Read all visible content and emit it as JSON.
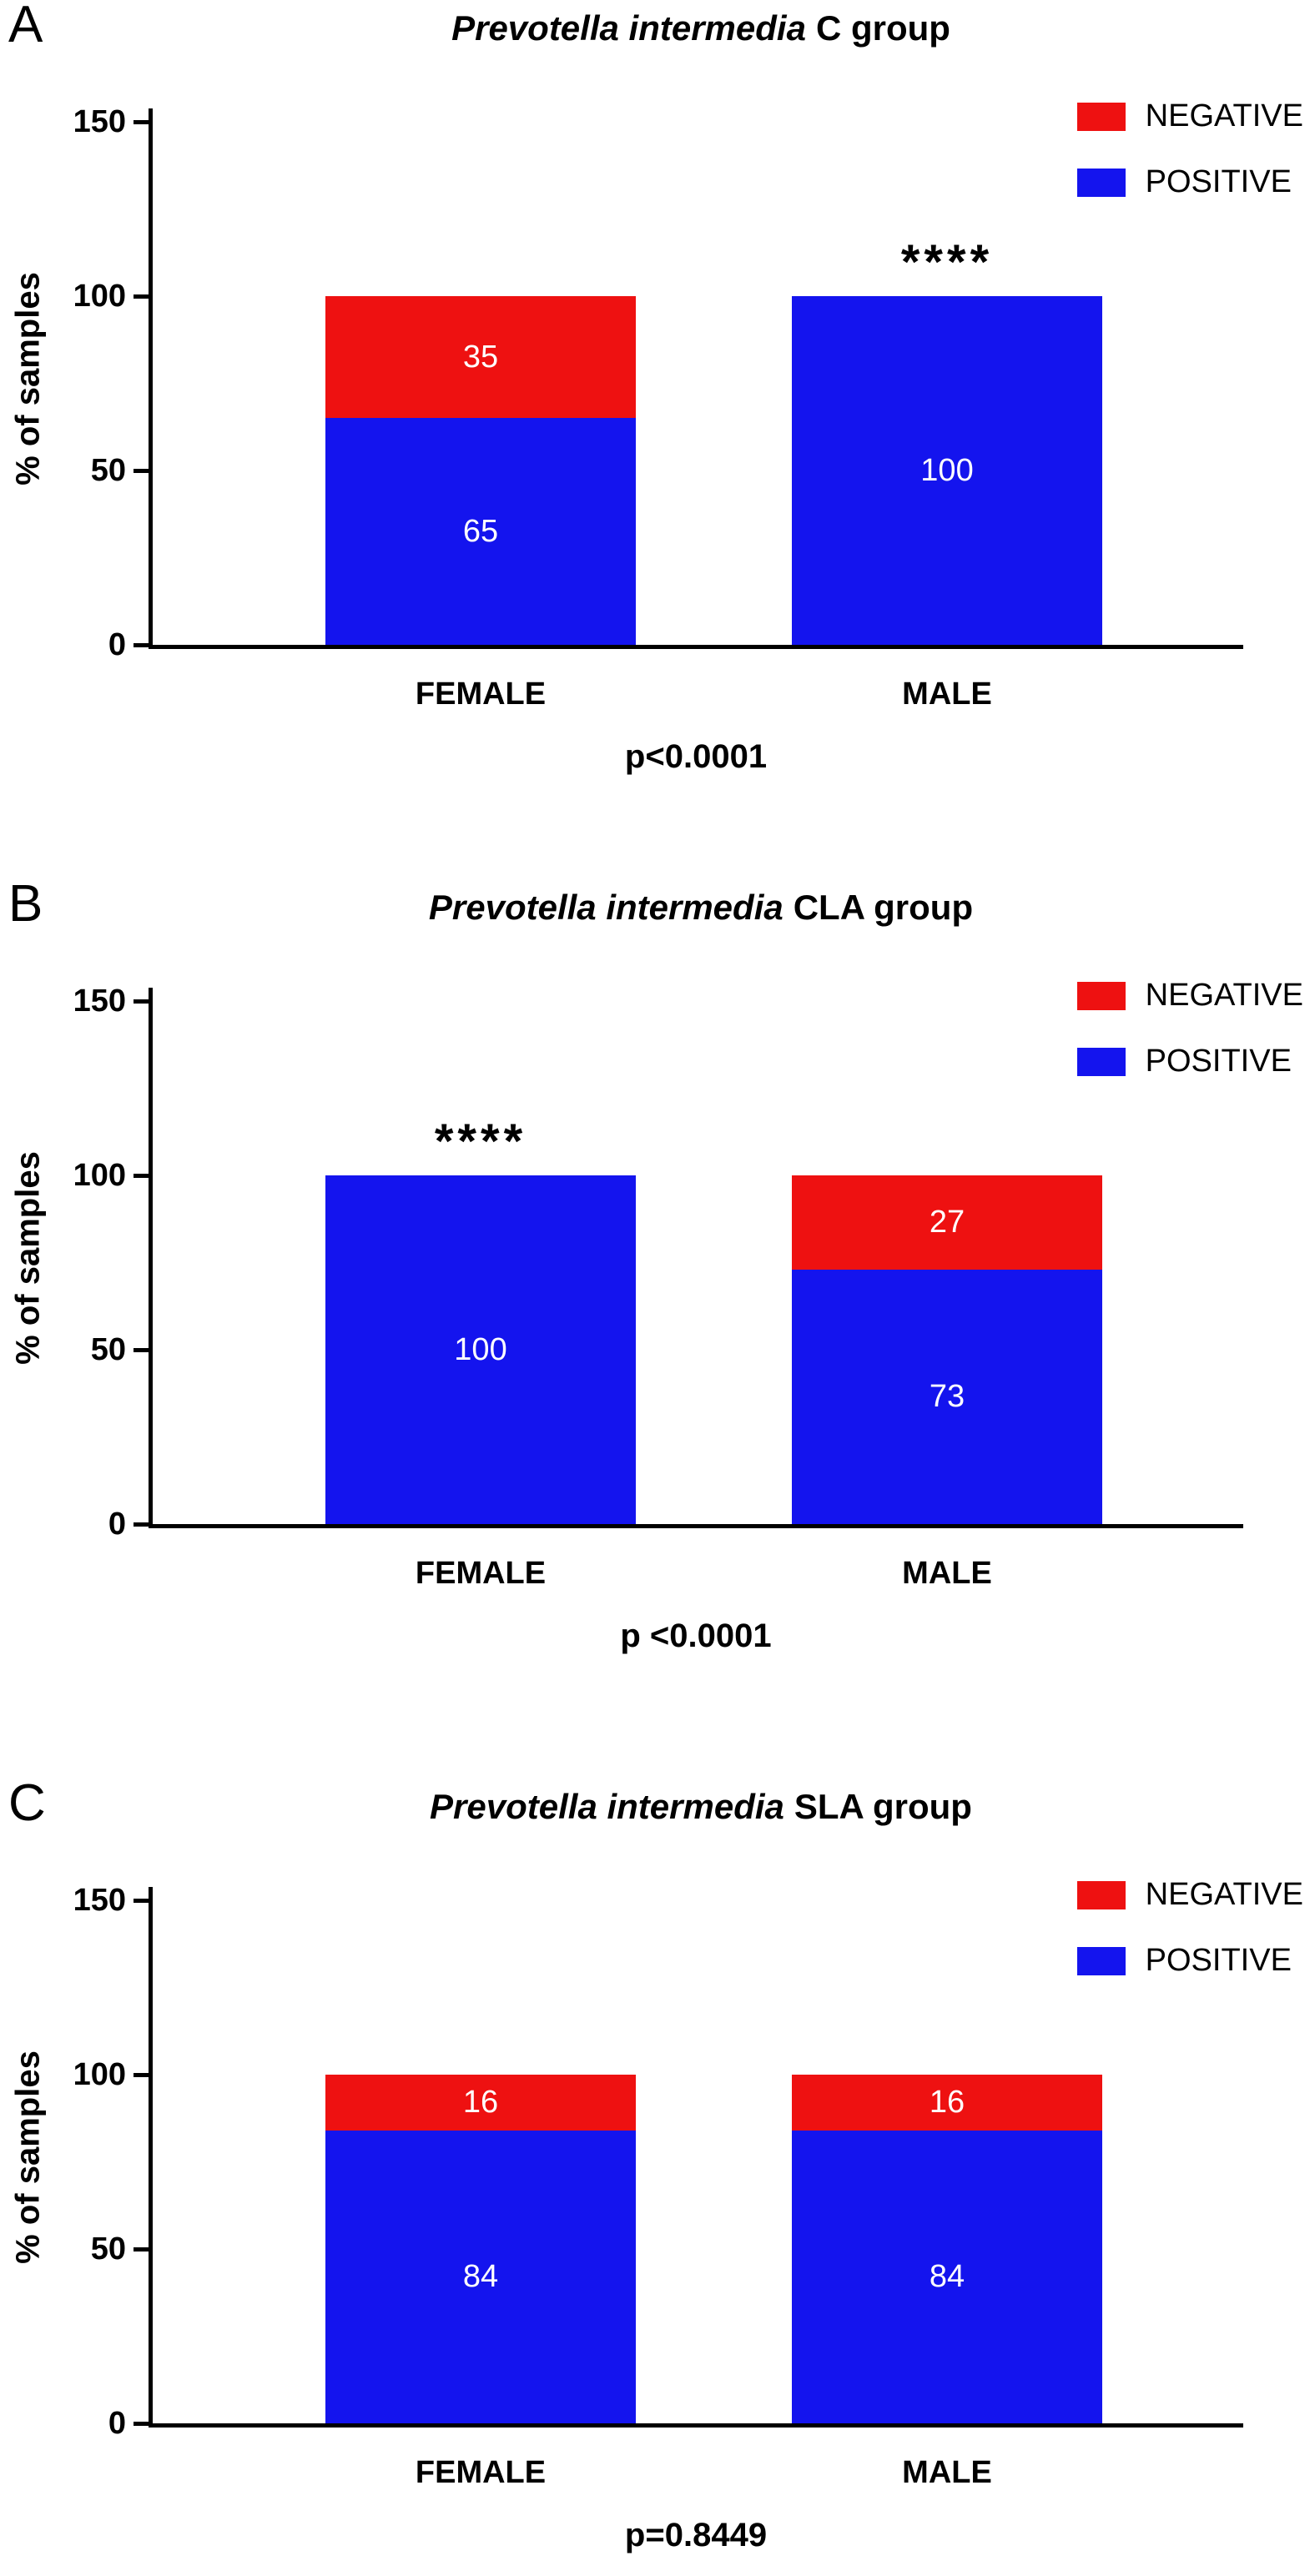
{
  "figure": {
    "background": "#ffffff"
  },
  "colors": {
    "negative": "#ee1111",
    "positive": "#1414ee",
    "axis": "#000000",
    "value_label": "#ffffff"
  },
  "legend": {
    "items": [
      {
        "label": "NEGATIVE",
        "color_key": "negative"
      },
      {
        "label": "POSITIVE",
        "color_key": "positive"
      }
    ]
  },
  "chart_data": [
    {
      "panel": "A",
      "type": "bar",
      "stacked": true,
      "title_italic": "Prevotella intermedia",
      "title_rest": "C group",
      "ylabel": "% of samples",
      "ylim": [
        0,
        150
      ],
      "yticks": [
        0,
        50,
        100,
        150
      ],
      "categories": [
        "FEMALE",
        "MALE"
      ],
      "series": [
        {
          "name": "POSITIVE",
          "color_key": "positive",
          "values": [
            65,
            100
          ]
        },
        {
          "name": "NEGATIVE",
          "color_key": "negative",
          "values": [
            35,
            0
          ]
        }
      ],
      "significance": {
        "category": "MALE",
        "marker": "****"
      },
      "p_label": "p<0.0001",
      "legend_position": "top-right",
      "grid": false
    },
    {
      "panel": "B",
      "type": "bar",
      "stacked": true,
      "title_italic": "Prevotella intermedia",
      "title_rest": "CLA group",
      "ylabel": "% of samples",
      "ylim": [
        0,
        150
      ],
      "yticks": [
        0,
        50,
        100,
        150
      ],
      "categories": [
        "FEMALE",
        "MALE"
      ],
      "series": [
        {
          "name": "POSITIVE",
          "color_key": "positive",
          "values": [
            100,
            73
          ]
        },
        {
          "name": "NEGATIVE",
          "color_key": "negative",
          "values": [
            0,
            27
          ]
        }
      ],
      "significance": {
        "category": "FEMALE",
        "marker": "****"
      },
      "p_label": "p <0.0001",
      "legend_position": "top-right",
      "grid": false
    },
    {
      "panel": "C",
      "type": "bar",
      "stacked": true,
      "title_italic": "Prevotella intermedia",
      "title_rest": "SLA group",
      "ylabel": "% of samples",
      "ylim": [
        0,
        150
      ],
      "yticks": [
        0,
        50,
        100,
        150
      ],
      "categories": [
        "FEMALE",
        "MALE"
      ],
      "series": [
        {
          "name": "POSITIVE",
          "color_key": "positive",
          "values": [
            84,
            84
          ]
        },
        {
          "name": "NEGATIVE",
          "color_key": "negative",
          "values": [
            16,
            16
          ]
        }
      ],
      "significance": null,
      "p_label": "p=0.8449",
      "legend_position": "top-right",
      "grid": false
    }
  ]
}
